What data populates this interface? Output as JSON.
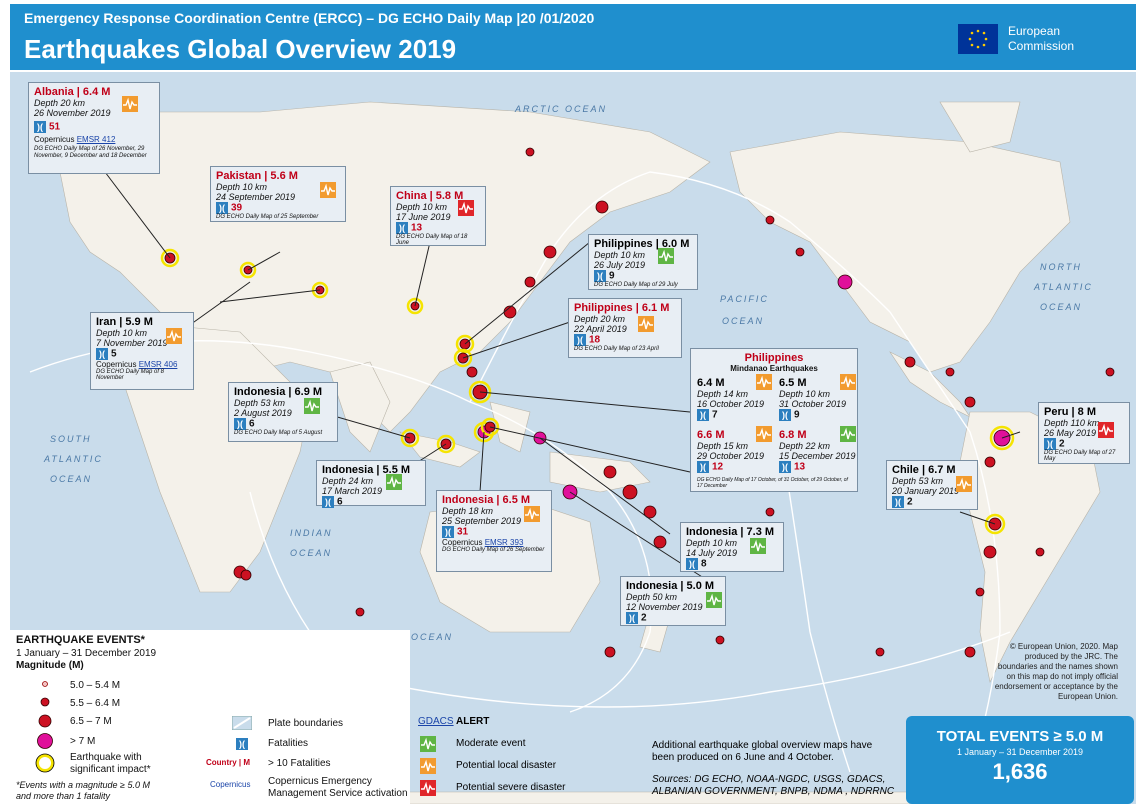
{
  "header": {
    "subtitle": "Emergency Response Coordination Centre (ERCC) – DG ECHO Daily Map |20 /01/2020",
    "title": "Earthquakes Global Overview 2019",
    "org_line1": "European",
    "org_line2": "Commission"
  },
  "oceans": {
    "arctic": "ARCTIC OCEAN",
    "north_atlantic_1": "NORTH",
    "north_atlantic_2": "ATLANTIC",
    "north_atlantic_3": "OCEAN",
    "pacific_1": "PACIFIC",
    "pacific_2": "OCEAN",
    "south_atlantic_1": "SOUTH",
    "south_atlantic_2": "ATLANTIC",
    "south_atlantic_3": "OCEAN",
    "indian_1": "INDIAN",
    "indian_2": "OCEAN",
    "southern": "SOUTHERN OCEAN"
  },
  "callouts": {
    "albania": {
      "title": "Albania | 6.4 M",
      "depth": "Depth 20 km",
      "date": "26 November 2019",
      "fatalities": "51",
      "ems": "EMSR 412",
      "note": "DG ECHO Daily Map of 26 November, 29 November, 9 December and 18 December"
    },
    "pakistan": {
      "title": "Pakistan | 5.6 M",
      "depth": "Depth 10 km",
      "date": "24 September 2019",
      "fatalities": "39",
      "note": "DG ECHO Daily Map of 25 September"
    },
    "china": {
      "title": "China | 5.8 M",
      "depth": "Depth 10 km",
      "date": "17 June 2019",
      "fatalities": "13",
      "note": "DG ECHO Daily Map of 18 June"
    },
    "ph1": {
      "title": "Philippines | 6.0 M",
      "depth": "Depth 10 km",
      "date": "26 July 2019",
      "fatalities": "9",
      "note": "DG ECHO Daily Map of 29 July"
    },
    "ph2": {
      "title": "Philippines | 6.1 M",
      "depth": "Depth 20 km",
      "date": "22 April 2019",
      "fatalities": "18",
      "note": "DG ECHO Daily Map of 23 April"
    },
    "iran": {
      "title": "Iran | 5.9 M",
      "depth": "Depth 10 km",
      "date": "7 November 2019",
      "fatalities": "5",
      "ems": "EMSR 406",
      "note": "DG ECHO Daily Map of 8 November"
    },
    "indo1": {
      "title": "Indonesia | 6.9 M",
      "depth": "Depth 53 km",
      "date": "2 August 2019",
      "fatalities": "6",
      "note": "DG ECHO Daily Map of 5 August"
    },
    "indo2": {
      "title": "Indonesia | 5.5 M",
      "depth": "Depth 24 km",
      "date": "17 March 2019",
      "fatalities": "6"
    },
    "indo3": {
      "title": "Indonesia | 6.5 M",
      "depth": "Depth 18 km",
      "date": "25 September 2019",
      "fatalities": "31",
      "ems": "EMSR 393",
      "note": "DG ECHO Daily Map of 26 September"
    },
    "indo4": {
      "title": "Indonesia | 7.3 M",
      "depth": "Depth 10 km",
      "date": "14 July 2019",
      "fatalities": "8"
    },
    "indo5": {
      "title": "Indonesia | 5.0 M",
      "depth": "Depth 50 km",
      "date": "12 November 2019",
      "fatalities": "2"
    },
    "mindanao": {
      "title": "Philippines",
      "subtitle": "Mindanao Earthquakes",
      "q1": {
        "mag": "6.4 M",
        "depth": "Depth 14 km",
        "date": "16 October 2019",
        "fatalities": "7"
      },
      "q2": {
        "mag": "6.5 M",
        "depth": "Depth 10 km",
        "date": "31 October 2019",
        "fatalities": "9"
      },
      "q3": {
        "mag": "6.6 M",
        "depth": "Depth 15 km",
        "date": "29 October 2019",
        "fatalities": "12"
      },
      "q4": {
        "mag": "6.8 M",
        "depth": "Depth 22 km",
        "date": "15 December 2019",
        "fatalities": "13"
      },
      "note": "DG ECHO Daily Map of 17 October, of 31 October, of 29 October, of 17 December"
    },
    "peru": {
      "title": "Peru | 8 M",
      "depth": "Depth 110 km",
      "date": "26 May 2019",
      "fatalities": "2",
      "note": "DG ECHO Daily Map of 27 May"
    },
    "chile": {
      "title": "Chile | 6.7 M",
      "depth": "Depth 53 km",
      "date": "20 January 2019",
      "fatalities": "2"
    }
  },
  "legend": {
    "heading": "EARTHQUAKE EVENTS*",
    "period": "1 January – 31 December 2019",
    "mag_heading": "Magnitude (M)",
    "m1": "5.0 – 5.4 M",
    "m2": "5.5 – 6.4 M",
    "m3": "6.5 – 7 M",
    "m4": "> 7 M",
    "m5_1": "Earthquake with",
    "m5_2": "significant impact*",
    "footnote_1": "*Events with a magnitude ≥ 5.0 M",
    "footnote_2": "and more than 1 fatality",
    "plate": "Plate boundaries",
    "fatalities": "Fatalities",
    "country_m": "Country | M",
    "gt10": "> 10 Fatalities",
    "cems_1": "Copernicus Emergency",
    "cems_2": "Management Service activation",
    "gdacs": "GDACS",
    "alert": "ALERT",
    "moderate": "Moderate event",
    "local": "Potential local disaster",
    "severe": "Potential severe disaster"
  },
  "notes": {
    "additional_1": "Additional earthquake global overview maps have",
    "additional_2": "been produced on 6 June and 4 October.",
    "sources_1": "Sources: DG ECHO, NOAA-NGDC, USGS, GDACS,",
    "sources_2": "ALBANIAN GOVERNMENT, BNPB, NDMA , NDRRNC",
    "copyright": "© European Union, 2020. Map produced by the JRC. The boundaries and the names shown on this map do not imply official endorsement or acceptance by the European Union."
  },
  "total": {
    "label": "TOTAL EVENTS ≥ 5.0 M",
    "period": "1 January – 31 December 2019",
    "value": "1,636"
  },
  "colors": {
    "header": "#1f8fce",
    "quake": "#cc1122",
    "big": "#e0109a",
    "sea": "#c9dceb",
    "land": "#f4f1ea"
  }
}
